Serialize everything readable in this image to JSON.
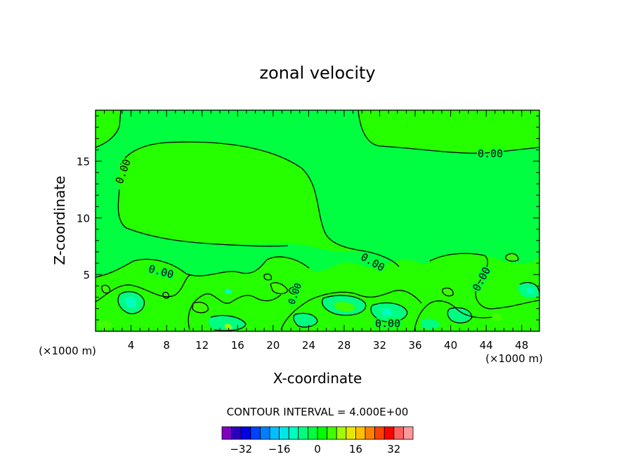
{
  "chart_data": {
    "type": "contour",
    "title": "zonal velocity",
    "xlabel": "X-coordinate",
    "ylabel": "Z-coordinate",
    "x_units": "(×1000 m)",
    "x_units_right": "(×1000 m)",
    "xlim": [
      0,
      50
    ],
    "ylim": [
      0,
      19.5
    ],
    "x_ticks": [
      "4",
      "8",
      "12",
      "16",
      "20",
      "24",
      "28",
      "32",
      "36",
      "40",
      "44",
      "48"
    ],
    "y_ticks": [
      "5",
      "10",
      "15"
    ],
    "contour_labels": [
      "0.00",
      "0.00",
      "0.00",
      "0.00",
      "0.00",
      "0.00",
      "0.00"
    ],
    "contour_interval_text": "CONTOUR INTERVAL = 4.000E+00",
    "colorbar": {
      "tick_labels": [
        "−32",
        "−16",
        "0",
        "16",
        "32"
      ],
      "colors": [
        "#7f00bf",
        "#2a00bf",
        "#0000e6",
        "#0040ff",
        "#0080ff",
        "#00bfff",
        "#00e6e6",
        "#00ffbf",
        "#00ff80",
        "#00ff40",
        "#00ff00",
        "#40ff00",
        "#a0ff00",
        "#e6e600",
        "#ffbf00",
        "#ff8000",
        "#ff4000",
        "#ff0000",
        "#ff6060",
        "#ff9999"
      ]
    },
    "grid": false,
    "legend": "bottom (colorbar)"
  }
}
